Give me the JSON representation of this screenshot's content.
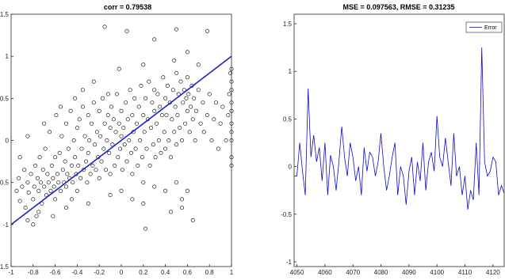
{
  "chart_data": [
    {
      "type": "scatter",
      "title": "corr = 0.79538",
      "xlim": [
        -1,
        1
      ],
      "ylim": [
        -1.5,
        1.5
      ],
      "xticks": [
        "-1",
        "-0.8",
        "-0.6",
        "-0.4",
        "-0.2",
        "0",
        "0.2",
        "0.4",
        "0.6",
        "0.8",
        "1"
      ],
      "yticks": [
        "-1.5",
        "-1",
        "-0.5",
        "0",
        "0.5",
        "1",
        "1.5"
      ],
      "xtick_values": [
        -1,
        -0.8,
        -0.6,
        -0.4,
        -0.2,
        0,
        0.2,
        0.4,
        0.6,
        0.8,
        1
      ],
      "ytick_values": [
        -1.5,
        -1,
        -0.5,
        0,
        0.5,
        1,
        1.5
      ],
      "fit_line": {
        "x": [
          -1,
          1
        ],
        "y": [
          -1,
          1
        ],
        "color": "#1a22c8"
      },
      "marker": "open-circle",
      "points": [
        [
          -0.95,
          -0.6
        ],
        [
          -0.93,
          -0.45
        ],
        [
          -0.92,
          -0.72
        ],
        [
          -0.9,
          -0.55
        ],
        [
          -0.88,
          -0.35
        ],
        [
          -0.87,
          -0.8
        ],
        [
          -0.85,
          -0.5
        ],
        [
          -0.84,
          -0.62
        ],
        [
          -0.82,
          -0.4
        ],
        [
          -0.8,
          -0.7
        ],
        [
          -0.79,
          -0.55
        ],
        [
          -0.78,
          -0.3
        ],
        [
          -0.77,
          -0.9
        ],
        [
          -0.76,
          -0.45
        ],
        [
          -0.75,
          -0.6
        ],
        [
          -0.74,
          -0.2
        ],
        [
          -0.73,
          -0.5
        ],
        [
          -0.72,
          -0.75
        ],
        [
          -0.71,
          -0.35
        ],
        [
          -0.7,
          -0.55
        ],
        [
          -0.69,
          -0.1
        ],
        [
          -0.68,
          -0.65
        ],
        [
          -0.67,
          -0.4
        ],
        [
          -0.66,
          -0.5
        ],
        [
          -0.65,
          0.1
        ],
        [
          -0.64,
          -0.6
        ],
        [
          -0.63,
          -0.3
        ],
        [
          -0.62,
          -0.45
        ],
        [
          -0.61,
          -0.55
        ],
        [
          -0.6,
          -0.2
        ],
        [
          -0.6,
          -0.7
        ],
        [
          -0.59,
          0.3
        ],
        [
          -0.58,
          -0.4
        ],
        [
          -0.57,
          -0.5
        ],
        [
          -0.56,
          -0.15
        ],
        [
          -0.55,
          -0.6
        ],
        [
          -0.54,
          0.05
        ],
        [
          -0.53,
          -0.35
        ],
        [
          -0.52,
          -0.5
        ],
        [
          -0.51,
          -0.25
        ],
        [
          -0.5,
          0.2
        ],
        [
          -0.5,
          -0.55
        ],
        [
          -0.49,
          -0.4
        ],
        [
          -0.48,
          -0.1
        ],
        [
          -0.47,
          -0.45
        ],
        [
          -0.46,
          0.35
        ],
        [
          -0.45,
          -0.3
        ],
        [
          -0.44,
          -0.5
        ],
        [
          -0.43,
          0.0
        ],
        [
          -0.42,
          -0.2
        ],
        [
          -0.41,
          -0.4
        ],
        [
          -0.4,
          0.15
        ],
        [
          -0.4,
          -0.6
        ],
        [
          -0.39,
          -0.3
        ],
        [
          -0.38,
          0.25
        ],
        [
          -0.37,
          -0.45
        ],
        [
          -0.36,
          -0.1
        ],
        [
          -0.35,
          0.4
        ],
        [
          -0.34,
          -0.35
        ],
        [
          -0.33,
          0.05
        ],
        [
          -0.32,
          -0.25
        ],
        [
          -0.31,
          -0.5
        ],
        [
          -0.3,
          0.3
        ],
        [
          -0.3,
          -0.15
        ],
        [
          -0.29,
          0.0
        ],
        [
          -0.28,
          -0.4
        ],
        [
          -0.27,
          0.2
        ],
        [
          -0.26,
          -0.3
        ],
        [
          -0.25,
          0.45
        ],
        [
          -0.24,
          -0.05
        ],
        [
          -0.23,
          -0.35
        ],
        [
          -0.22,
          0.1
        ],
        [
          -0.21,
          -0.2
        ],
        [
          -0.2,
          0.35
        ],
        [
          -0.2,
          -0.45
        ],
        [
          -0.19,
          0.05
        ],
        [
          -0.18,
          -0.25
        ],
        [
          -0.17,
          0.5
        ],
        [
          -0.16,
          -0.1
        ],
        [
          -0.15,
          0.2
        ],
        [
          -0.14,
          -0.35
        ],
        [
          -0.13,
          0.0
        ],
        [
          -0.12,
          0.3
        ],
        [
          -0.11,
          -0.15
        ],
        [
          -0.1,
          0.15
        ],
        [
          -0.1,
          -0.4
        ],
        [
          -0.09,
          0.4
        ],
        [
          -0.08,
          -0.05
        ],
        [
          -0.07,
          0.25
        ],
        [
          -0.06,
          -0.3
        ],
        [
          -0.05,
          0.1
        ],
        [
          -0.04,
          0.55
        ],
        [
          -0.03,
          -0.2
        ],
        [
          -0.02,
          0.2
        ],
        [
          -0.01,
          -0.1
        ],
        [
          0.0,
          0.05
        ],
        [
          0.0,
          0.35
        ],
        [
          0.01,
          -0.35
        ],
        [
          0.02,
          0.15
        ],
        [
          0.03,
          -0.05
        ],
        [
          0.04,
          0.45
        ],
        [
          0.05,
          -0.25
        ],
        [
          0.06,
          0.25
        ],
        [
          0.07,
          0.0
        ],
        [
          0.08,
          0.6
        ],
        [
          0.09,
          -0.15
        ],
        [
          0.1,
          0.3
        ],
        [
          0.1,
          -0.4
        ],
        [
          0.11,
          0.1
        ],
        [
          0.12,
          0.5
        ],
        [
          0.13,
          -0.1
        ],
        [
          0.14,
          0.2
        ],
        [
          0.15,
          -0.3
        ],
        [
          0.16,
          0.4
        ],
        [
          0.17,
          0.0
        ],
        [
          0.18,
          0.65
        ],
        [
          0.19,
          -0.2
        ],
        [
          0.2,
          0.3
        ],
        [
          0.2,
          -0.5
        ],
        [
          0.21,
          0.1
        ],
        [
          0.22,
          0.5
        ],
        [
          0.23,
          -0.1
        ],
        [
          0.24,
          0.25
        ],
        [
          0.25,
          0.7
        ],
        [
          0.26,
          -0.3
        ],
        [
          0.27,
          0.15
        ],
        [
          0.28,
          0.45
        ],
        [
          0.29,
          -0.05
        ],
        [
          0.3,
          0.35
        ],
        [
          0.3,
          0.6
        ],
        [
          0.31,
          -0.2
        ],
        [
          0.32,
          0.2
        ],
        [
          0.33,
          0.55
        ],
        [
          0.34,
          0.0
        ],
        [
          0.35,
          0.4
        ],
        [
          0.36,
          -0.15
        ],
        [
          0.37,
          0.3
        ],
        [
          0.38,
          0.75
        ],
        [
          0.39,
          0.1
        ],
        [
          0.4,
          0.5
        ],
        [
          0.4,
          -0.1
        ],
        [
          0.41,
          0.3
        ],
        [
          0.42,
          0.65
        ],
        [
          0.43,
          0.0
        ],
        [
          0.44,
          0.45
        ],
        [
          0.45,
          -0.2
        ],
        [
          0.46,
          0.25
        ],
        [
          0.47,
          0.6
        ],
        [
          0.48,
          0.1
        ],
        [
          0.49,
          0.4
        ],
        [
          0.5,
          0.8
        ],
        [
          0.5,
          -0.05
        ],
        [
          0.51,
          0.3
        ],
        [
          0.52,
          0.55
        ],
        [
          0.53,
          0.15
        ],
        [
          0.54,
          0.7
        ],
        [
          0.55,
          0.0
        ],
        [
          0.56,
          0.45
        ],
        [
          0.57,
          0.6
        ],
        [
          0.58,
          0.2
        ],
        [
          0.59,
          0.5
        ],
        [
          0.6,
          0.75
        ],
        [
          0.6,
          0.35
        ],
        [
          0.61,
          0.55
        ],
        [
          0.62,
          0.1
        ],
        [
          0.63,
          0.4
        ],
        [
          0.64,
          0.65
        ],
        [
          0.65,
          0.25
        ],
        [
          0.66,
          0.5
        ],
        [
          0.67,
          0.0
        ],
        [
          0.68,
          0.35
        ],
        [
          0.7,
          0.6
        ],
        [
          0.72,
          0.2
        ],
        [
          0.74,
          0.45
        ],
        [
          0.75,
          0.1
        ],
        [
          0.78,
          0.3
        ],
        [
          0.8,
          0.55
        ],
        [
          0.82,
          0.0
        ],
        [
          0.84,
          0.25
        ],
        [
          0.86,
          0.45
        ],
        [
          0.88,
          -0.1
        ],
        [
          0.9,
          0.2
        ],
        [
          0.92,
          0.4
        ],
        [
          0.95,
          0.0
        ],
        [
          0.97,
          0.3
        ],
        [
          0.98,
          0.55
        ],
        [
          0.99,
          0.8
        ],
        [
          1.0,
          0.1
        ],
        [
          1.0,
          0.35
        ],
        [
          1.0,
          0.6
        ],
        [
          1.0,
          0.85
        ],
        [
          1.0,
          -0.2
        ],
        [
          1.0,
          -0.3
        ],
        [
          1.0,
          0.0
        ],
        [
          1.0,
          0.2
        ],
        [
          1.0,
          0.45
        ],
        [
          1.0,
          0.7
        ],
        [
          -0.85,
          -0.95
        ],
        [
          -0.8,
          -1.0
        ],
        [
          -0.75,
          -0.85
        ],
        [
          -0.62,
          -0.9
        ],
        [
          -0.5,
          -0.8
        ],
        [
          -0.45,
          -0.7
        ],
        [
          -0.3,
          -0.75
        ],
        [
          -0.1,
          -0.65
        ],
        [
          0.0,
          -0.6
        ],
        [
          0.1,
          -0.7
        ],
        [
          0.2,
          -0.75
        ],
        [
          0.3,
          -0.55
        ],
        [
          0.4,
          -0.6
        ],
        [
          0.5,
          -0.5
        ],
        [
          0.55,
          -0.7
        ],
        [
          0.6,
          -0.6
        ],
        [
          -0.15,
          1.35
        ],
        [
          0.05,
          1.3
        ],
        [
          0.3,
          1.2
        ],
        [
          0.5,
          1.32
        ],
        [
          0.6,
          1.05
        ],
        [
          0.78,
          1.3
        ],
        [
          0.55,
          -0.8
        ],
        [
          0.22,
          -1.05
        ],
        [
          0.45,
          -0.85
        ],
        [
          0.65,
          -0.95
        ],
        [
          -0.02,
          0.85
        ],
        [
          0.2,
          0.9
        ],
        [
          0.48,
          0.95
        ],
        [
          0.7,
          0.9
        ],
        [
          -0.92,
          -0.2
        ],
        [
          -0.85,
          0.05
        ],
        [
          -0.7,
          0.2
        ],
        [
          -0.55,
          0.4
        ],
        [
          -0.42,
          0.5
        ],
        [
          -0.35,
          0.6
        ],
        [
          -0.25,
          0.7
        ],
        [
          -0.12,
          0.55
        ]
      ]
    },
    {
      "type": "line",
      "title": "MSE = 0.097563, RMSE = 0.31235",
      "xlim": [
        4049,
        4124
      ],
      "ylim": [
        -1.05,
        1.6
      ],
      "xticks": [
        "4050",
        "4060",
        "4070",
        "4080",
        "4090",
        "4100",
        "4110",
        "4120"
      ],
      "yticks": [
        "-1",
        "-0.5",
        "0",
        "0.5",
        "1",
        "1.5"
      ],
      "xtick_values": [
        4050,
        4060,
        4070,
        4080,
        4090,
        4100,
        4110,
        4120
      ],
      "ytick_values": [
        -1,
        -0.5,
        0,
        0.5,
        1,
        1.5
      ],
      "legend": "top-right",
      "series": [
        {
          "name": "Error",
          "color": "#0a0ad0",
          "x": [
            4049,
            4050,
            4051,
            4052,
            4053,
            4054,
            4055,
            4056,
            4057,
            4058,
            4059,
            4060,
            4061,
            4062,
            4063,
            4064,
            4065,
            4066,
            4067,
            4068,
            4069,
            4070,
            4071,
            4072,
            4073,
            4074,
            4075,
            4076,
            4077,
            4078,
            4079,
            4080,
            4081,
            4082,
            4083,
            4084,
            4085,
            4086,
            4087,
            4088,
            4089,
            4090,
            4091,
            4092,
            4093,
            4094,
            4095,
            4096,
            4097,
            4098,
            4099,
            4100,
            4101,
            4102,
            4103,
            4104,
            4105,
            4106,
            4107,
            4108,
            4109,
            4110,
            4111,
            4112,
            4113,
            4114,
            4115,
            4116,
            4117,
            4118,
            4119,
            4120,
            4121,
            4122,
            4123,
            4124
          ],
          "y": [
            -0.1,
            -0.1,
            0.25,
            -0.05,
            -0.3,
            0.82,
            0.1,
            0.33,
            0.05,
            0.2,
            -0.15,
            0.25,
            -0.3,
            0.12,
            0.0,
            -0.25,
            0.05,
            0.42,
            0.1,
            -0.1,
            0.25,
            0.1,
            -0.15,
            0.0,
            -0.3,
            0.2,
            -0.05,
            0.15,
            0.1,
            -0.1,
            0.05,
            0.35,
            0.0,
            -0.25,
            -0.1,
            0.1,
            0.25,
            -0.3,
            0.0,
            -0.1,
            -0.4,
            -0.05,
            0.1,
            -0.3,
            0.05,
            -0.15,
            0.25,
            -0.25,
            0.05,
            0.15,
            -0.05,
            0.53,
            0.1,
            0.0,
            0.3,
            0.05,
            -0.2,
            0.35,
            -0.1,
            0.0,
            -0.3,
            -0.1,
            -0.45,
            -0.25,
            -0.35,
            0.25,
            -0.3,
            1.25,
            0.05,
            -0.1,
            -0.05,
            0.1,
            0.05,
            -0.3,
            -0.2,
            -0.28
          ]
        }
      ]
    }
  ]
}
